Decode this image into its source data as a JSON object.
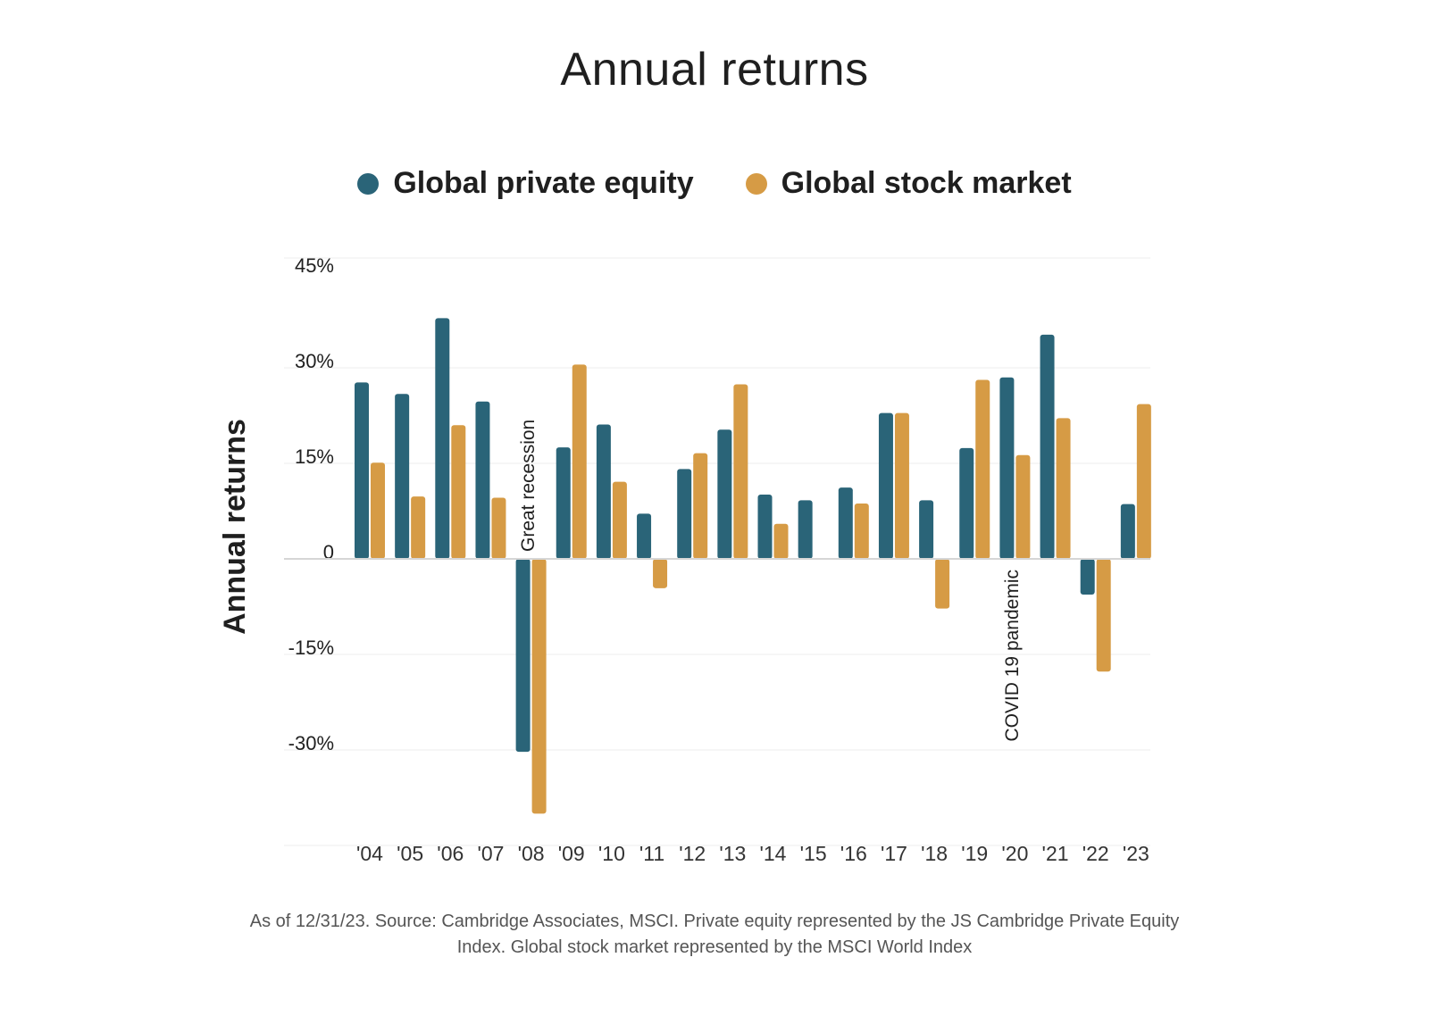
{
  "chart_data": {
    "type": "bar",
    "title": "Annual returns",
    "ylabel": "Annual returns",
    "xlabel": "",
    "ylim": [
      -45,
      45
    ],
    "yticks": [
      45,
      30,
      15,
      0,
      -15,
      -30
    ],
    "ytick_labels": [
      "45%",
      "30%",
      "15%",
      "0",
      "-15%",
      "-30%"
    ],
    "categories": [
      "'04",
      "'05",
      "'06",
      "'07",
      "'08",
      "'09",
      "'10",
      "'11",
      "'12",
      "'13",
      "'14",
      "'15",
      "'16",
      "'17",
      "'18",
      "'19",
      "'20",
      "'21",
      "'22",
      "'23"
    ],
    "series": [
      {
        "name": "Global private equity",
        "color": "#2a6478",
        "values": [
          27.7,
          25.9,
          37.8,
          24.7,
          -30.3,
          17.5,
          21.1,
          7.1,
          14.1,
          20.3,
          10.1,
          9.2,
          11.2,
          22.9,
          9.2,
          17.4,
          28.5,
          35.2,
          -5.6,
          8.6
        ]
      },
      {
        "name": "Global stock market",
        "color": "#d69b45",
        "values": [
          15.1,
          9.8,
          21.0,
          9.6,
          -40.0,
          30.5,
          12.1,
          -4.6,
          16.6,
          27.4,
          5.5,
          0,
          8.7,
          22.9,
          -7.8,
          28.1,
          16.3,
          22.1,
          -17.7,
          24.3
        ]
      }
    ],
    "annotations": [
      {
        "text": "Great recession",
        "category": "'08"
      },
      {
        "text": "COVID 19 pandemic",
        "category": "'20"
      }
    ],
    "legend_position": "top-center",
    "grid": true
  },
  "footnote": {
    "line1": "As of 12/31/23.   Source: Cambridge Associates, MSCI. Private equity represented by the JS Cambridge Private Equity",
    "line2": "Index. Global stock market represented by the MSCI World Index"
  }
}
